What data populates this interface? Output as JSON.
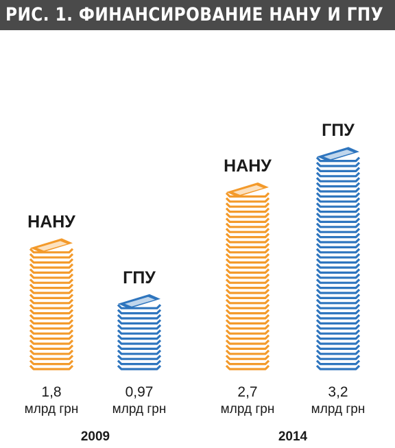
{
  "figure": {
    "title": "РИС. 1. ФИНАНСИРОВАНИЕ НАНУ И ГПУ"
  },
  "colors": {
    "nanu": "#F39A2B",
    "gpu": "#2E75BE",
    "title_bar": "#4A4A4A"
  },
  "chart_data": {
    "type": "bar",
    "title": "РИС. 1. ФИНАНСИРОВАНИЕ НАНУ И ГПУ",
    "categories": [
      "2009",
      "2014"
    ],
    "unit": "млрд грн",
    "series": [
      {
        "name": "НАНУ",
        "color": "#F39A2B",
        "values": [
          1.8,
          2.7
        ],
        "value_labels": [
          "1,8",
          "2,7"
        ]
      },
      {
        "name": "ГПУ",
        "color": "#2E75BE",
        "values": [
          0.97,
          3.2
        ],
        "value_labels": [
          "0,97",
          "3,2"
        ]
      }
    ],
    "bars": [
      {
        "category": "2009",
        "series": "НАНУ",
        "value": 1.8,
        "value_label": "1,8",
        "unit": "млрд грн"
      },
      {
        "category": "2009",
        "series": "ГПУ",
        "value": 0.97,
        "value_label": "0,97",
        "unit": "млрд грн"
      },
      {
        "category": "2014",
        "series": "НАНУ",
        "value": 2.7,
        "value_label": "2,7",
        "unit": "млрд грн"
      },
      {
        "category": "2014",
        "series": "ГПУ",
        "value": 3.2,
        "value_label": "3,2",
        "unit": "млрд грн"
      }
    ],
    "xlabel": "",
    "ylabel": "",
    "grid": false
  }
}
